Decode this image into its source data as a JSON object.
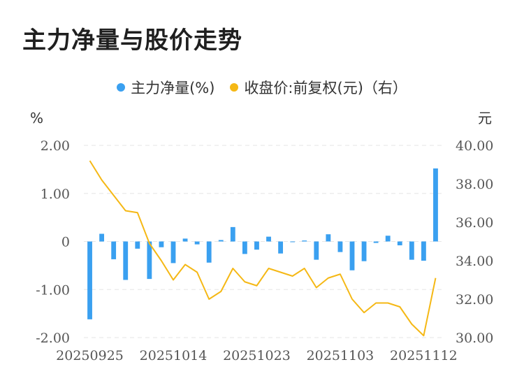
{
  "title": "主力净量与股价走势",
  "legend": [
    {
      "label": "主力净量(%)",
      "color": "#3aa0f0"
    },
    {
      "label": "收盘价:前复权(元)（右）",
      "color": "#f5b815"
    }
  ],
  "chart_data": {
    "type": "bar+line",
    "title": "主力净量与股价走势",
    "y_left": {
      "unit": "%",
      "range": [
        -2,
        2
      ],
      "ticks": [
        "2.00",
        "1.00",
        "0",
        "-1.00",
        "-2.00"
      ]
    },
    "y_right": {
      "unit": "元",
      "range": [
        30,
        40
      ],
      "ticks": [
        "40.00",
        "38.00",
        "36.00",
        "34.00",
        "32.00",
        "30.00"
      ]
    },
    "x_labels": [
      "20250925",
      "20251014",
      "20251023",
      "20251103",
      "20251112"
    ],
    "x_label_positions": [
      0,
      7,
      14,
      21,
      28
    ],
    "grid": true,
    "legend_position": "top",
    "series": [
      {
        "name": "主力净量(%)",
        "type": "bar",
        "color": "#3aa0f0",
        "values": [
          -1.62,
          0.16,
          -0.37,
          -0.8,
          -0.15,
          -0.78,
          -0.12,
          -0.45,
          0.06,
          -0.06,
          -0.44,
          0.03,
          0.3,
          -0.26,
          -0.17,
          0.1,
          -0.25,
          -0.01,
          0.02,
          -0.38,
          0.15,
          -0.22,
          -0.6,
          -0.41,
          -0.03,
          0.12,
          -0.08,
          -0.38,
          -0.4,
          1.52
        ]
      },
      {
        "name": "收盘价:前复权(元)（右）",
        "type": "line",
        "color": "#f5b815",
        "values": [
          39.2,
          38.2,
          37.4,
          36.6,
          36.5,
          34.9,
          34.0,
          33.0,
          33.8,
          33.4,
          32.0,
          32.4,
          33.6,
          32.9,
          32.7,
          33.6,
          33.4,
          33.2,
          33.6,
          32.6,
          33.1,
          33.3,
          32.0,
          31.3,
          31.8,
          31.8,
          31.6,
          30.7,
          30.1,
          33.1
        ]
      }
    ]
  }
}
